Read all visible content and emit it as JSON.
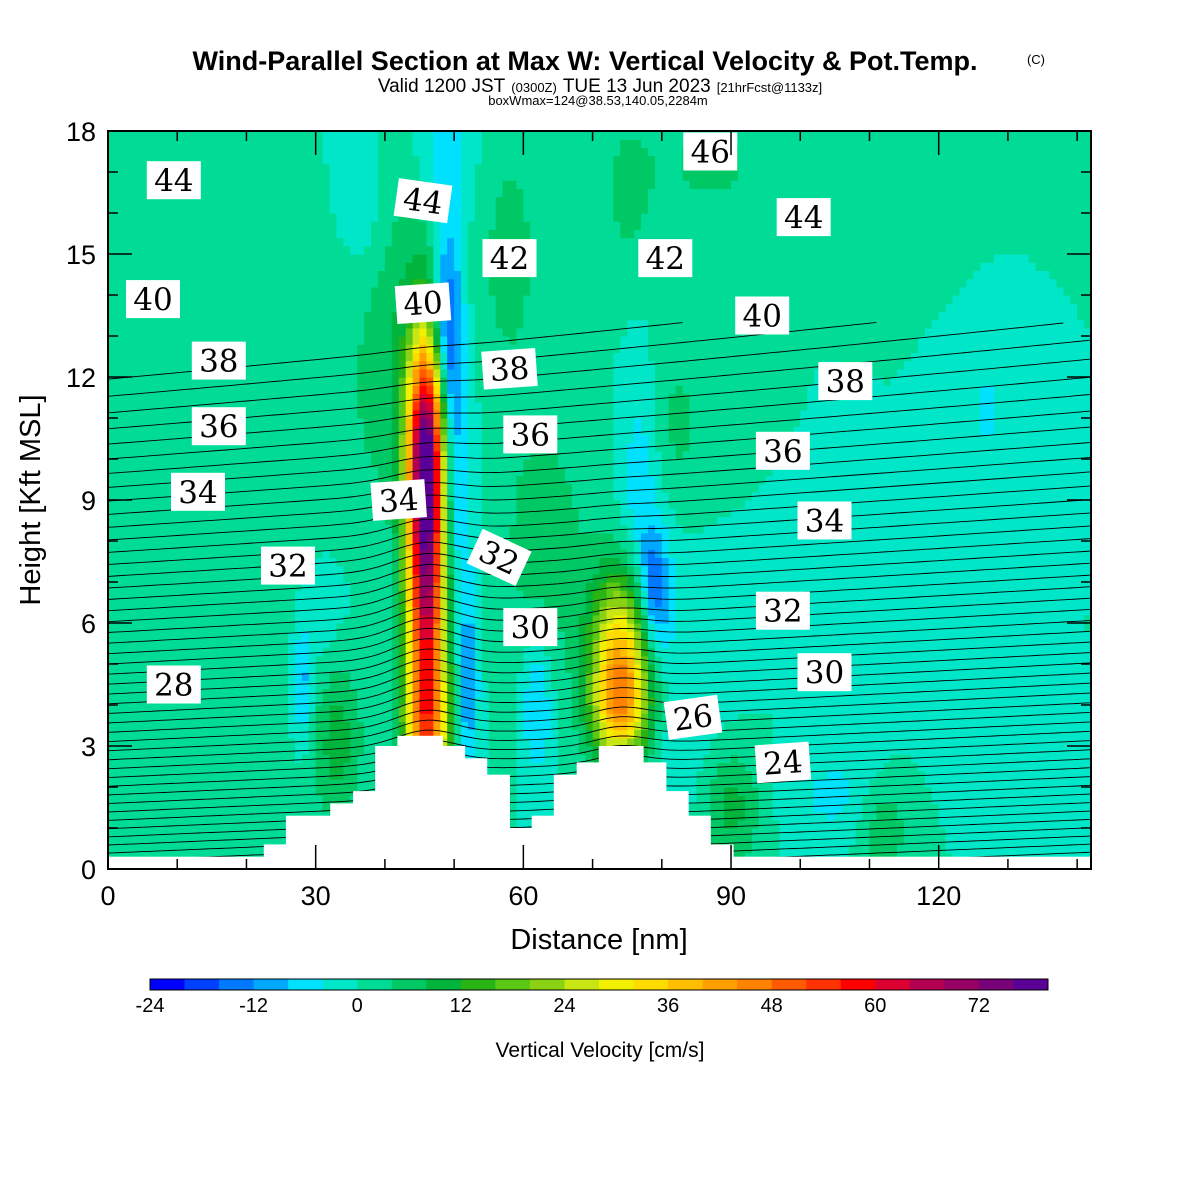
{
  "header": {
    "title": "Wind-Parallel Section at Max W: Vertical Velocity & Pot.Temp.",
    "copyright": "(C)",
    "valid_prefix": "Valid 1200 JST",
    "valid_utc": "(0300Z)",
    "valid_date": "TUE 13 Jun 2023",
    "valid_fcst": "[21hrFcst@1133z]",
    "boxwmax": "boxWmax=124@38.53,140.05,2284m"
  },
  "chart_data": {
    "type": "heatmap",
    "title": "Wind-Parallel Section at Max W: Vertical Velocity & Pot.Temp.",
    "xlabel": "Distance [nm]",
    "ylabel": "Height [Kft MSL]",
    "xlim": [
      0,
      142
    ],
    "ylim": [
      0,
      18
    ],
    "x_ticks": [
      {
        "value": 0,
        "label": "0"
      },
      {
        "value": 30,
        "label": "30"
      },
      {
        "value": 60,
        "label": "60"
      },
      {
        "value": 90,
        "label": "90"
      },
      {
        "value": 120,
        "label": "120"
      }
    ],
    "y_ticks": [
      {
        "value": 0,
        "label": "0"
      },
      {
        "value": 3,
        "label": "3"
      },
      {
        "value": 6,
        "label": "6"
      },
      {
        "value": 9,
        "label": "9"
      },
      {
        "value": 12,
        "label": "12"
      },
      {
        "value": 15,
        "label": "15"
      },
      {
        "value": 18,
        "label": "18"
      }
    ],
    "colorbar": {
      "label": "Vertical Velocity [cm/s]",
      "levels": [
        -24,
        -20,
        -16,
        -12,
        -8,
        -4,
        0,
        4,
        8,
        12,
        16,
        20,
        24,
        28,
        32,
        36,
        40,
        44,
        48,
        52,
        56,
        60,
        64,
        68,
        72,
        76,
        80
      ],
      "colors": [
        "#0000ff",
        "#0040ff",
        "#0078ff",
        "#00a8ff",
        "#00e0ff",
        "#00e6c8",
        "#00dc96",
        "#00c864",
        "#00b43c",
        "#28b414",
        "#5ac814",
        "#8cd214",
        "#c8e614",
        "#f0f000",
        "#ffdc00",
        "#ffbe00",
        "#ffa000",
        "#ff8200",
        "#ff5a00",
        "#ff3200",
        "#ff0000",
        "#dc0032",
        "#b40050",
        "#960064",
        "#780078",
        "#5a0096"
      ],
      "tick_labels": [
        {
          "value": -24,
          "label": "-24"
        },
        {
          "value": -12,
          "label": "-12"
        },
        {
          "value": 0,
          "label": "0"
        },
        {
          "value": 12,
          "label": "12"
        },
        {
          "value": 24,
          "label": "24"
        },
        {
          "value": 36,
          "label": "36"
        },
        {
          "value": 48,
          "label": "48"
        },
        {
          "value": 60,
          "label": "60"
        },
        {
          "value": 72,
          "label": "72"
        }
      ]
    },
    "w_features": [
      {
        "x": 46,
        "y": 7.5,
        "sx": 2.0,
        "sy": 3.2,
        "w": 70
      },
      {
        "x": 46,
        "y": 10.6,
        "sx": 1.8,
        "sy": 1.6,
        "w": 36
      },
      {
        "x": 46,
        "y": 3.2,
        "sx": 2.5,
        "sy": 1.2,
        "w": 24
      },
      {
        "x": 74,
        "y": 5.0,
        "sx": 3.0,
        "sy": 1.5,
        "w": 40
      },
      {
        "x": 74,
        "y": 3.8,
        "sx": 3.0,
        "sy": 0.8,
        "w": 16
      },
      {
        "x": 33,
        "y": 3.5,
        "sx": 2.5,
        "sy": 1.5,
        "w": 12
      },
      {
        "x": 40,
        "y": 12.0,
        "sx": 4.0,
        "sy": 2.5,
        "w": 6
      },
      {
        "x": 45,
        "y": 15.5,
        "sx": 4.0,
        "sy": 3.0,
        "w": 4
      },
      {
        "x": 63,
        "y": 8.0,
        "sx": 5.0,
        "sy": 2.5,
        "w": 6
      },
      {
        "x": 58,
        "y": 15.0,
        "sx": 3.0,
        "sy": 2.0,
        "w": 6
      },
      {
        "x": 75,
        "y": 16.5,
        "sx": 3.0,
        "sy": 1.5,
        "w": 5
      },
      {
        "x": 87,
        "y": 17.2,
        "sx": 6.0,
        "sy": 1.0,
        "w": 5
      },
      {
        "x": 82,
        "y": 10.8,
        "sx": 4.0,
        "sy": 1.6,
        "w": 5
      },
      {
        "x": 110,
        "y": 15.3,
        "sx": 5.0,
        "sy": 0.5,
        "w": 4
      },
      {
        "x": 10,
        "y": 5.0,
        "sx": 15.0,
        "sy": 2.5,
        "w": 4
      },
      {
        "x": 90,
        "y": 1.5,
        "sx": 3.0,
        "sy": 1.0,
        "w": 10
      },
      {
        "x": 112,
        "y": 1.0,
        "sx": 2.5,
        "sy": 0.8,
        "w": 8
      },
      {
        "x": 49,
        "y": 13.0,
        "sx": 1.5,
        "sy": 1.8,
        "w": -22
      },
      {
        "x": 50,
        "y": 9.0,
        "sx": 1.8,
        "sy": 2.0,
        "w": -12
      },
      {
        "x": 52,
        "y": 4.5,
        "sx": 1.0,
        "sy": 1.5,
        "w": -14
      },
      {
        "x": 62,
        "y": 4.0,
        "sx": 1.5,
        "sy": 1.2,
        "w": -10
      },
      {
        "x": 79,
        "y": 6.8,
        "sx": 1.5,
        "sy": 1.0,
        "w": -16
      },
      {
        "x": 77,
        "y": 9.5,
        "sx": 2.0,
        "sy": 2.0,
        "w": -8
      },
      {
        "x": 82,
        "y": 4.5,
        "sx": 5.0,
        "sy": 2.5,
        "w": -4
      },
      {
        "x": 48,
        "y": 17.5,
        "sx": 3.0,
        "sy": 1.5,
        "w": -8
      },
      {
        "x": 37,
        "y": 16.5,
        "sx": 2.0,
        "sy": 1.5,
        "w": -4
      },
      {
        "x": 32,
        "y": 5.0,
        "sx": 3.0,
        "sy": 1.5,
        "w": -6
      },
      {
        "x": 28,
        "y": 4.5,
        "sx": 1.0,
        "sy": 1.0,
        "w": -10
      },
      {
        "x": 105,
        "y": 1.8,
        "sx": 5.0,
        "sy": 0.8,
        "w": -5
      },
      {
        "x": 127,
        "y": 11.2,
        "sx": 2.0,
        "sy": 1.0,
        "w": -5
      }
    ],
    "terrain": [
      {
        "x0": 0,
        "x1": 22.5,
        "top": 0.3
      },
      {
        "x0": 22.5,
        "x1": 25.7,
        "top": 0.6
      },
      {
        "x0": 25.7,
        "x1": 32.1,
        "top": 1.3
      },
      {
        "x0": 32.1,
        "x1": 35.4,
        "top": 1.6
      },
      {
        "x0": 35.4,
        "x1": 38.6,
        "top": 1.9
      },
      {
        "x0": 38.6,
        "x1": 41.8,
        "top": 3.0
      },
      {
        "x0": 41.8,
        "x1": 48.3,
        "top": 3.25
      },
      {
        "x0": 48.3,
        "x1": 51.5,
        "top": 3.0
      },
      {
        "x0": 51.5,
        "x1": 54.7,
        "top": 2.7
      },
      {
        "x0": 54.7,
        "x1": 58.0,
        "top": 2.3
      },
      {
        "x0": 58.0,
        "x1": 61.2,
        "top": 1.0
      },
      {
        "x0": 61.2,
        "x1": 64.4,
        "top": 1.3
      },
      {
        "x0": 64.4,
        "x1": 67.7,
        "top": 2.3
      },
      {
        "x0": 67.7,
        "x1": 70.9,
        "top": 2.6
      },
      {
        "x0": 70.9,
        "x1": 77.3,
        "top": 3.0
      },
      {
        "x0": 77.3,
        "x1": 80.6,
        "top": 2.6
      },
      {
        "x0": 80.6,
        "x1": 83.8,
        "top": 1.9
      },
      {
        "x0": 83.8,
        "x1": 87.0,
        "top": 1.3
      },
      {
        "x0": 87.0,
        "x1": 90.3,
        "top": 0.6
      },
      {
        "x0": 90.3,
        "x1": 142,
        "top": 0.3
      }
    ],
    "theta_levels": [
      20,
      20.5,
      21,
      21.5,
      22,
      22.5,
      23,
      23.5,
      24,
      24.5,
      25,
      25.5,
      26,
      26.5,
      27,
      27.5,
      28,
      28.5,
      29,
      29.5,
      30,
      30.5,
      31,
      31.5,
      32,
      32.5,
      33,
      33.5,
      34,
      34.5,
      35,
      35.5,
      36,
      36.5,
      37,
      37.5,
      38,
      38.5,
      39,
      39.5,
      40,
      40.5,
      41,
      41.5,
      42,
      42.5,
      43,
      43.5,
      44,
      44.5,
      45,
      45.5,
      46
    ],
    "theta_labels": [
      {
        "text": "44",
        "x": 9.5,
        "y": 16.8,
        "rot": 0
      },
      {
        "text": "44",
        "x": 45.5,
        "y": 16.3,
        "rot": 8
      },
      {
        "text": "42",
        "x": 58.0,
        "y": 14.9,
        "rot": 0
      },
      {
        "text": "42",
        "x": 80.5,
        "y": 14.9,
        "rot": 0
      },
      {
        "text": "46",
        "x": 87.0,
        "y": 17.5,
        "rot": 0
      },
      {
        "text": "44",
        "x": 100.5,
        "y": 15.9,
        "rot": 0
      },
      {
        "text": "40",
        "x": 6.5,
        "y": 13.9,
        "rot": 0
      },
      {
        "text": "40",
        "x": 45.5,
        "y": 13.8,
        "rot": -4
      },
      {
        "text": "40",
        "x": 94.5,
        "y": 13.5,
        "rot": 0
      },
      {
        "text": "38",
        "x": 16.0,
        "y": 12.4,
        "rot": 0
      },
      {
        "text": "38",
        "x": 58.0,
        "y": 12.2,
        "rot": -4
      },
      {
        "text": "38",
        "x": 106.5,
        "y": 11.9,
        "rot": 0
      },
      {
        "text": "36",
        "x": 16.0,
        "y": 10.8,
        "rot": 0
      },
      {
        "text": "36",
        "x": 61.0,
        "y": 10.6,
        "rot": 0
      },
      {
        "text": "36",
        "x": 97.5,
        "y": 10.2,
        "rot": 0
      },
      {
        "text": "34",
        "x": 13.0,
        "y": 9.2,
        "rot": 0
      },
      {
        "text": "34",
        "x": 42.0,
        "y": 9.0,
        "rot": -4
      },
      {
        "text": "34",
        "x": 103.5,
        "y": 8.5,
        "rot": 0
      },
      {
        "text": "32",
        "x": 26.0,
        "y": 7.4,
        "rot": 0
      },
      {
        "text": "32",
        "x": 56.5,
        "y": 7.6,
        "rot": 25
      },
      {
        "text": "32",
        "x": 97.5,
        "y": 6.3,
        "rot": 0
      },
      {
        "text": "30",
        "x": 61.0,
        "y": 5.9,
        "rot": 0
      },
      {
        "text": "30",
        "x": 103.5,
        "y": 4.8,
        "rot": 0
      },
      {
        "text": "28",
        "x": 9.5,
        "y": 4.5,
        "rot": 0
      },
      {
        "text": "26",
        "x": 84.5,
        "y": 3.7,
        "rot": -8
      },
      {
        "text": "24",
        "x": 97.5,
        "y": 2.6,
        "rot": -4
      }
    ]
  }
}
